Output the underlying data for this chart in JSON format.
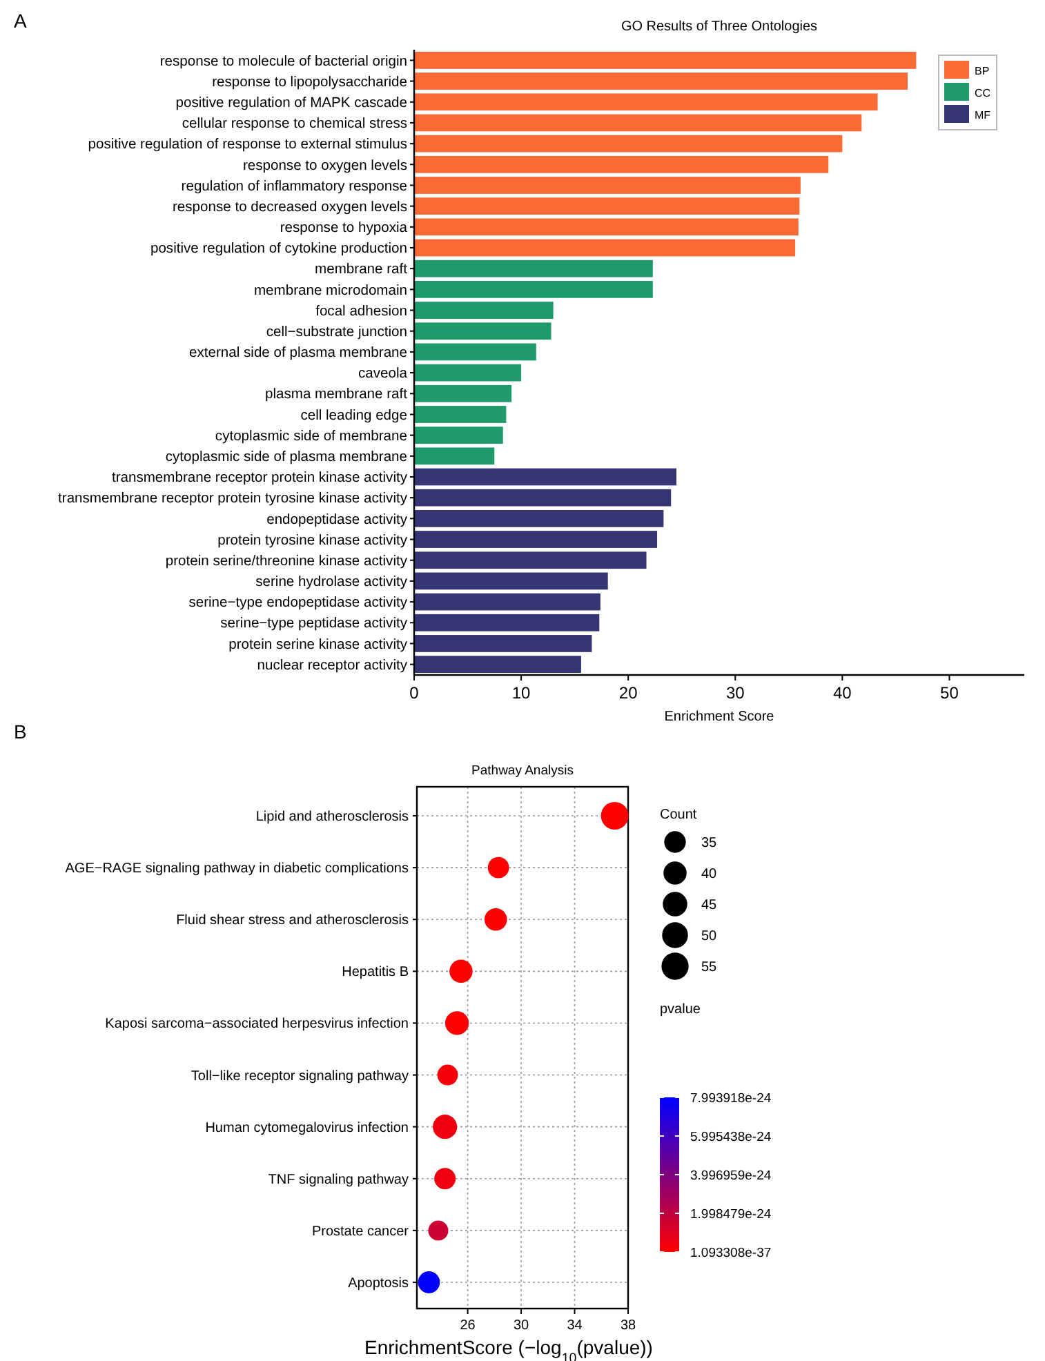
{
  "chart_data": [
    {
      "type": "bar",
      "orientation": "horizontal",
      "title": "GO Results of Three Ontologies",
      "xlabel": "Enrichment Score",
      "annotations": [
        "A"
      ],
      "categories": [
        "response to molecule of bacterial origin",
        "response to lipopolysaccharide",
        "positive regulation of MAPK cascade",
        "cellular response to chemical stress",
        "positive regulation of response to external stimulus",
        "response to oxygen levels",
        "regulation of inflammatory response",
        "response to decreased oxygen levels",
        "response to hypoxia",
        "positive regulation of cytokine production",
        "membrane raft",
        "membrane microdomain",
        "focal adhesion",
        "cell−substrate junction",
        "external side of plasma membrane",
        "caveola",
        "plasma membrane raft",
        "cell leading edge",
        "cytoplasmic side of membrane",
        "cytoplasmic side of plasma membrane",
        "transmembrane receptor protein kinase activity",
        "transmembrane receptor protein tyrosine kinase activity",
        "endopeptidase activity",
        "protein tyrosine kinase activity",
        "protein serine/threonine kinase activity",
        "serine hydrolase activity",
        "serine−type endopeptidase activity",
        "serine−type peptidase activity",
        "protein serine kinase activity",
        "nuclear receptor activity"
      ],
      "series": [
        {
          "name": "BP",
          "color": "#f96a35",
          "values": [
            46.9,
            46.1,
            43.3,
            41.8,
            40.0,
            38.7,
            36.1,
            36.0,
            35.9,
            35.6,
            null,
            null,
            null,
            null,
            null,
            null,
            null,
            null,
            null,
            null,
            null,
            null,
            null,
            null,
            null,
            null,
            null,
            null,
            null,
            null
          ]
        },
        {
          "name": "CC",
          "color": "#1f9a6b",
          "values": [
            null,
            null,
            null,
            null,
            null,
            null,
            null,
            null,
            null,
            null,
            22.3,
            22.3,
            13.0,
            12.8,
            11.4,
            10.0,
            9.1,
            8.6,
            8.3,
            7.5,
            null,
            null,
            null,
            null,
            null,
            null,
            null,
            null,
            null,
            null
          ]
        },
        {
          "name": "MF",
          "color": "#353573",
          "values": [
            null,
            null,
            null,
            null,
            null,
            null,
            null,
            null,
            null,
            null,
            null,
            null,
            null,
            null,
            null,
            null,
            null,
            null,
            null,
            null,
            24.5,
            24.0,
            23.3,
            22.7,
            21.7,
            18.1,
            17.4,
            17.3,
            16.6,
            15.6
          ]
        }
      ],
      "xlim": [
        0,
        57
      ],
      "xticks": [
        0,
        10,
        20,
        30,
        40,
        50
      ],
      "legend": "top right"
    },
    {
      "type": "bubble",
      "orientation": "horizontal",
      "title": "Pathway Analysis",
      "xlabel": "EnrichmentScore (−log$_{10}$(pvalue))",
      "annotations": [
        "B"
      ],
      "legend_title": "Count",
      "clabel": "pvalue",
      "categories": [
        "Lipid and atherosclerosis",
        "AGE−RAGE signaling pathway in diabetic complications",
        "Fluid shear stress and atherosclerosis",
        "Hepatitis B",
        "Kaposi sarcoma−associated herpesvirus infection",
        "Toll−like receptor signaling pathway",
        "Human cytomegalovirus infection",
        "TNF signaling pathway",
        "Prostate cancer",
        "Apoptosis"
      ],
      "values": [
        37.0,
        28.3,
        28.1,
        25.5,
        25.2,
        24.5,
        24.3,
        24.3,
        23.8,
        23.1
      ],
      "sizes": [
        57,
        34,
        38,
        40,
        42,
        32,
        44,
        34,
        30,
        36
      ],
      "size_legend": [
        35,
        40,
        45,
        50,
        55
      ],
      "cvalues": [
        1.093308e-37,
        5e-29,
        8e-29,
        3.2e-26,
        6.3e-26,
        3.2e-25,
        5e-25,
        5e-25,
        1.6e-24,
        7.993918e-24
      ],
      "clim": [
        1.093308e-37,
        7.993918e-24
      ],
      "cticks": [
        {
          "value": 7.993918e-24,
          "label": "7.993918e-24"
        },
        {
          "value": 5.995438e-24,
          "label": "5.995438e-24"
        },
        {
          "value": 3.996959e-24,
          "label": "3.996959e-24"
        },
        {
          "value": 1.998479e-24,
          "label": "1.998479e-24"
        },
        {
          "value": 1.093308e-37,
          "label": "1.093308e-37"
        }
      ],
      "xlim": [
        22.2,
        38
      ],
      "xticks": [
        26,
        30,
        34,
        38
      ],
      "grid": true
    }
  ]
}
